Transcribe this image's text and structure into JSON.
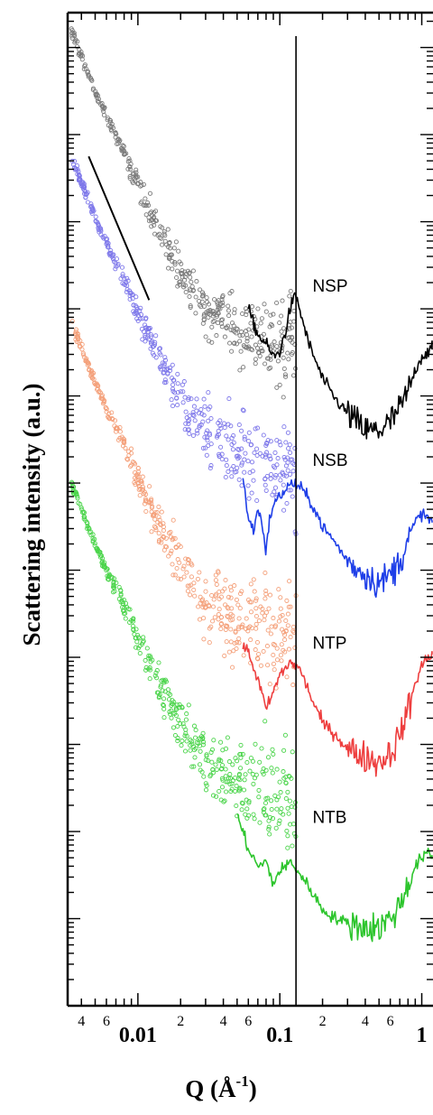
{
  "chart_data": {
    "type": "scatter",
    "title": "",
    "xlabel": "Q (Å",
    "xlabel_sup": "-1",
    "xlabel_close": ")",
    "ylabel": "Scattering intensity (a.u.)",
    "x_scale": "log",
    "y_scale": "log",
    "xlim": [
      0.0032,
      1.2
    ],
    "ylim_decades": 11.4,
    "grid": false,
    "legend": "none",
    "x_decade_ticks": [
      {
        "value": 0.01,
        "label": "0.01"
      },
      {
        "value": 0.1,
        "label": "0.1"
      },
      {
        "value": 1,
        "label": "1"
      }
    ],
    "x_minor_labels": [
      {
        "value": 0.004,
        "label": "4"
      },
      {
        "value": 0.006,
        "label": "6"
      },
      {
        "value": 0.02,
        "label": "2"
      },
      {
        "value": 0.04,
        "label": "4"
      },
      {
        "value": 0.06,
        "label": "6"
      },
      {
        "value": 0.2,
        "label": "2"
      },
      {
        "value": 0.4,
        "label": "4"
      },
      {
        "value": 0.6,
        "label": "6"
      }
    ],
    "vertical_line": {
      "x": 0.13
    },
    "guide_line": {
      "x": [
        0.0045,
        0.012
      ],
      "y_decades": [
        9.75,
        8.1
      ]
    },
    "series": [
      {
        "name": "NSP",
        "color": "#000000",
        "marker_color": "#7a7a7a",
        "label_x": 0.17,
        "label_y_decades": 8.2,
        "usans_offset_decades": 0.0,
        "scatter_fraction": 0.4,
        "usans": [
          [
            0.0034,
            11.2
          ],
          [
            0.004,
            10.9
          ],
          [
            0.005,
            10.5
          ],
          [
            0.006,
            10.2
          ],
          [
            0.008,
            9.8
          ],
          [
            0.01,
            9.4
          ],
          [
            0.015,
            8.8
          ],
          [
            0.02,
            8.4
          ],
          [
            0.03,
            8.0
          ],
          [
            0.05,
            7.8
          ],
          [
            0.08,
            7.7
          ],
          [
            0.12,
            7.6
          ],
          [
            0.13,
            7.6
          ]
        ],
        "sans": [
          [
            0.06,
            8.0
          ],
          [
            0.07,
            7.7
          ],
          [
            0.08,
            7.6
          ],
          [
            0.09,
            7.45
          ],
          [
            0.1,
            7.5
          ],
          [
            0.11,
            7.75
          ],
          [
            0.12,
            8.05
          ],
          [
            0.13,
            8.15
          ],
          [
            0.14,
            7.95
          ],
          [
            0.16,
            7.6
          ],
          [
            0.2,
            7.2
          ],
          [
            0.25,
            6.95
          ],
          [
            0.3,
            6.8
          ],
          [
            0.4,
            6.6
          ],
          [
            0.5,
            6.6
          ],
          [
            0.6,
            6.7
          ],
          [
            0.7,
            6.85
          ],
          [
            0.8,
            7.05
          ],
          [
            0.9,
            7.3
          ],
          [
            1.0,
            7.45
          ],
          [
            1.1,
            7.5
          ],
          [
            1.2,
            7.55
          ]
        ]
      },
      {
        "name": "NSB",
        "color": "#1f3fe8",
        "marker_color": "#7e78ea",
        "label_x": 0.17,
        "label_y_decades": 6.2,
        "usans_offset_decades": -1.45,
        "scatter_fraction": 0.45,
        "usans": [
          [
            0.0034,
            11.2
          ],
          [
            0.004,
            10.9
          ],
          [
            0.005,
            10.5
          ],
          [
            0.006,
            10.2
          ],
          [
            0.008,
            9.8
          ],
          [
            0.01,
            9.4
          ],
          [
            0.015,
            8.8
          ],
          [
            0.02,
            8.4
          ],
          [
            0.03,
            8.0
          ],
          [
            0.05,
            7.8
          ],
          [
            0.08,
            7.7
          ],
          [
            0.12,
            7.6
          ],
          [
            0.13,
            7.6
          ]
        ],
        "sans": [
          [
            0.055,
            6.05
          ],
          [
            0.06,
            5.6
          ],
          [
            0.065,
            5.45
          ],
          [
            0.07,
            5.7
          ],
          [
            0.075,
            5.55
          ],
          [
            0.08,
            5.2
          ],
          [
            0.085,
            5.6
          ],
          [
            0.09,
            5.75
          ],
          [
            0.1,
            5.85
          ],
          [
            0.12,
            6.0
          ],
          [
            0.14,
            5.95
          ],
          [
            0.17,
            5.75
          ],
          [
            0.2,
            5.5
          ],
          [
            0.25,
            5.3
          ],
          [
            0.3,
            5.1
          ],
          [
            0.4,
            4.95
          ],
          [
            0.5,
            4.85
          ],
          [
            0.6,
            4.95
          ],
          [
            0.7,
            5.1
          ],
          [
            0.8,
            5.35
          ],
          [
            0.9,
            5.55
          ],
          [
            1.0,
            5.65
          ],
          [
            1.1,
            5.6
          ],
          [
            1.2,
            5.55
          ]
        ]
      },
      {
        "name": "NTP",
        "color": "#ee3f3f",
        "marker_color": "#f4a07a",
        "label_x": 0.17,
        "label_y_decades": 4.1,
        "usans_offset_decades": -3.35,
        "scatter_fraction": 0.5,
        "usans": [
          [
            0.0034,
            11.2
          ],
          [
            0.004,
            10.9
          ],
          [
            0.005,
            10.5
          ],
          [
            0.006,
            10.2
          ],
          [
            0.008,
            9.8
          ],
          [
            0.01,
            9.4
          ],
          [
            0.015,
            8.8
          ],
          [
            0.02,
            8.4
          ],
          [
            0.03,
            8.0
          ],
          [
            0.05,
            7.8
          ],
          [
            0.08,
            7.7
          ],
          [
            0.12,
            7.6
          ],
          [
            0.13,
            7.6
          ]
        ],
        "sans": [
          [
            0.055,
            4.15
          ],
          [
            0.06,
            4.05
          ],
          [
            0.07,
            3.75
          ],
          [
            0.08,
            3.4
          ],
          [
            0.09,
            3.6
          ],
          [
            0.1,
            3.8
          ],
          [
            0.12,
            3.95
          ],
          [
            0.14,
            3.85
          ],
          [
            0.17,
            3.5
          ],
          [
            0.2,
            3.25
          ],
          [
            0.25,
            3.1
          ],
          [
            0.3,
            2.95
          ],
          [
            0.4,
            2.85
          ],
          [
            0.5,
            2.8
          ],
          [
            0.6,
            2.9
          ],
          [
            0.7,
            3.1
          ],
          [
            0.8,
            3.4
          ],
          [
            0.9,
            3.7
          ],
          [
            1.0,
            3.9
          ],
          [
            1.1,
            4.0
          ],
          [
            1.2,
            4.05
          ]
        ]
      },
      {
        "name": "NTB",
        "color": "#2dc52d",
        "marker_color": "#4ad44a",
        "label_x": 0.17,
        "label_y_decades": 2.1,
        "usans_offset_decades": -5.2,
        "scatter_fraction": 0.5,
        "usans": [
          [
            0.0034,
            11.2
          ],
          [
            0.004,
            10.9
          ],
          [
            0.005,
            10.5
          ],
          [
            0.006,
            10.2
          ],
          [
            0.008,
            9.8
          ],
          [
            0.01,
            9.4
          ],
          [
            0.015,
            8.8
          ],
          [
            0.02,
            8.4
          ],
          [
            0.03,
            8.0
          ],
          [
            0.05,
            7.8
          ],
          [
            0.08,
            7.7
          ],
          [
            0.12,
            7.6
          ],
          [
            0.13,
            7.6
          ]
        ],
        "sans": [
          [
            0.05,
            2.2
          ],
          [
            0.06,
            1.8
          ],
          [
            0.07,
            1.6
          ],
          [
            0.08,
            1.65
          ],
          [
            0.09,
            1.4
          ],
          [
            0.1,
            1.55
          ],
          [
            0.12,
            1.65
          ],
          [
            0.14,
            1.5
          ],
          [
            0.17,
            1.3
          ],
          [
            0.2,
            1.1
          ],
          [
            0.25,
            1.0
          ],
          [
            0.3,
            0.95
          ],
          [
            0.4,
            0.9
          ],
          [
            0.5,
            0.9
          ],
          [
            0.6,
            1.0
          ],
          [
            0.7,
            1.15
          ],
          [
            0.8,
            1.4
          ],
          [
            0.9,
            1.6
          ],
          [
            1.0,
            1.7
          ],
          [
            1.1,
            1.75
          ],
          [
            1.2,
            1.7
          ]
        ]
      }
    ]
  }
}
